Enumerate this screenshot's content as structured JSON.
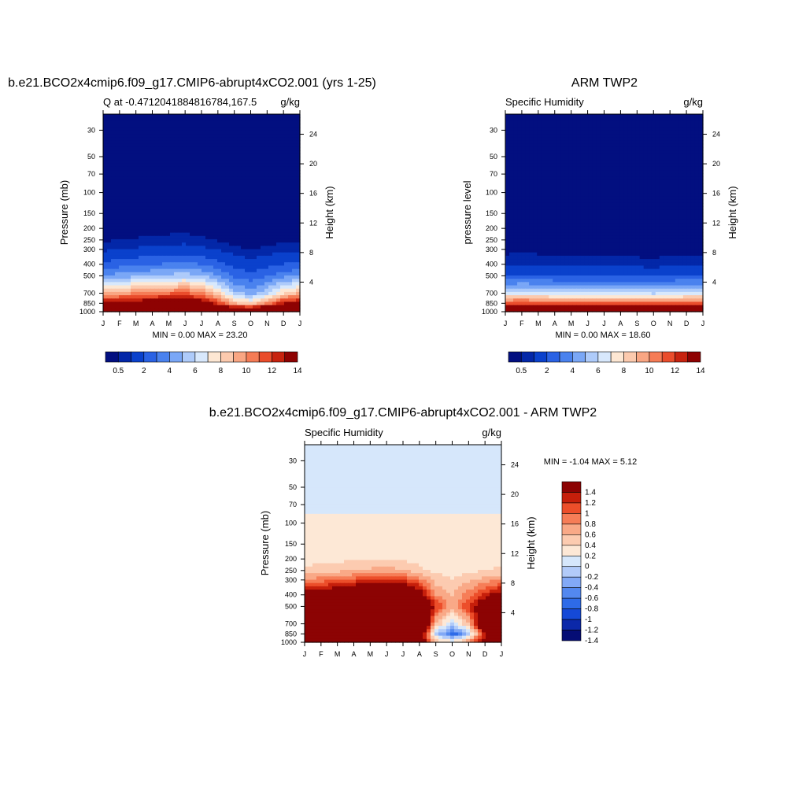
{
  "palettes": {
    "humidity": [
      "#020f80",
      "#0327a8",
      "#0a41cc",
      "#2a62e4",
      "#4a82ee",
      "#7aa7f6",
      "#aecbfa",
      "#d8e8fc",
      "#fde7d3",
      "#fccaae",
      "#f9a683",
      "#f57c56",
      "#ea4d2c",
      "#c7230f",
      "#8e0202"
    ],
    "difference": [
      "#050d75",
      "#0b28a9",
      "#1549d7",
      "#2e6be8",
      "#5388ef",
      "#82a9f6",
      "#b2cbf9",
      "#d6e7fb",
      "#fde8d6",
      "#fccbb0",
      "#f9a987",
      "#f67d57",
      "#ec4e2a",
      "#c61f0b",
      "#8c0303"
    ]
  },
  "charts": [
    {
      "title": "b.e21.BCO2x4cmip6.f09_g17.CMIP6-abrupt4xCO2.001 (yrs 1-25)",
      "left_label": "Q at -0.4712041884816784,167.5",
      "right_label": "g/kg",
      "ylabel": "Pressure (mb)",
      "y2label": "Height (km)",
      "stats": "MIN =   0.00 MAX =  23.20",
      "months": [
        "J",
        "F",
        "M",
        "A",
        "M",
        "J",
        "J",
        "A",
        "S",
        "O",
        "N",
        "D",
        "J"
      ],
      "pressure_ticks": [
        "30",
        "50",
        "70",
        "100",
        "150",
        "200",
        "250",
        "300",
        "400",
        "500",
        "700",
        "850",
        "1000"
      ],
      "height_ticks": [
        "24",
        "20",
        "16",
        "12",
        "8",
        "4"
      ],
      "colorbar_labels": [
        "0.5",
        "2",
        "4",
        "6",
        "8",
        "10",
        "12",
        "14"
      ]
    },
    {
      "title": "ARM TWP2",
      "left_label": "Specific Humidity",
      "right_label": "g/kg",
      "ylabel": "pressure level",
      "y2label": "Height (km)",
      "stats": "MIN =   0.00 MAX =  18.60",
      "months": [
        "J",
        "F",
        "M",
        "A",
        "M",
        "J",
        "J",
        "A",
        "S",
        "O",
        "N",
        "D",
        "J"
      ],
      "pressure_ticks": [
        "30",
        "50",
        "70",
        "100",
        "150",
        "200",
        "250",
        "300",
        "400",
        "500",
        "700",
        "850",
        "1000"
      ],
      "height_ticks": [
        "24",
        "20",
        "16",
        "12",
        "8",
        "4"
      ],
      "colorbar_labels": [
        "0.5",
        "2",
        "4",
        "6",
        "8",
        "10",
        "12",
        "14"
      ]
    },
    {
      "title": "b.e21.BCO2x4cmip6.f09_g17.CMIP6-abrupt4xCO2.001 - ARM TWP2",
      "left_label": "Specific Humidity",
      "right_label": "g/kg",
      "ylabel": "Pressure (mb)",
      "y2label": "Height (km)",
      "stats": "MIN =  -1.04 MAX =   5.12",
      "months": [
        "J",
        "F",
        "M",
        "A",
        "M",
        "J",
        "J",
        "A",
        "S",
        "O",
        "N",
        "D",
        "J"
      ],
      "pressure_ticks": [
        "30",
        "50",
        "70",
        "100",
        "150",
        "200",
        "250",
        "300",
        "400",
        "500",
        "700",
        "850",
        "1000"
      ],
      "height_ticks": [
        "24",
        "20",
        "16",
        "12",
        "8",
        "4"
      ],
      "colorbar_labels": [
        "1.4",
        "1.2",
        "1",
        "0.8",
        "0.6",
        "0.4",
        "0.2",
        "0",
        "-0.2",
        "-0.4",
        "-0.6",
        "-0.8",
        "-1",
        "-1.2",
        "-1.4"
      ]
    }
  ],
  "chart_data": [
    {
      "type": "heatmap",
      "title": "b.e21.BCO2x4cmip6.f09_g17.CMIP6-abrupt4xCO2.001 (yrs 1-25)",
      "variable": "Q at -0.4712041884816784,167.5",
      "units": "g/kg",
      "xlabel": "",
      "ylabel": "Pressure (mb)",
      "y2label": "Height (km)",
      "x_ticks": [
        "J",
        "F",
        "M",
        "A",
        "M",
        "J",
        "J",
        "A",
        "S",
        "O",
        "N",
        "D",
        "J"
      ],
      "y_ticks": [
        30,
        50,
        70,
        100,
        150,
        200,
        250,
        300,
        400,
        500,
        700,
        850,
        1000
      ],
      "y_scale": "log",
      "ylim": [
        1000,
        22
      ],
      "y2_ticks": [
        24,
        20,
        16,
        12,
        8,
        4
      ],
      "levels": [
        0.5,
        1,
        2,
        3,
        4,
        5,
        6,
        7,
        8,
        9,
        10,
        11,
        12,
        13,
        14
      ],
      "min": 0.0,
      "max": 23.2,
      "pressure_levels": [
        30,
        50,
        70,
        100,
        150,
        200,
        250,
        300,
        400,
        500,
        700,
        850,
        1000
      ],
      "values": [
        [
          0.01,
          0.01,
          0.01,
          0.01,
          0.01,
          0.01,
          0.01,
          0.01,
          0.01,
          0.01,
          0.01,
          0.01,
          0.01
        ],
        [
          0.01,
          0.01,
          0.01,
          0.01,
          0.01,
          0.01,
          0.01,
          0.01,
          0.01,
          0.01,
          0.01,
          0.01,
          0.01
        ],
        [
          0.01,
          0.01,
          0.01,
          0.01,
          0.01,
          0.01,
          0.01,
          0.01,
          0.01,
          0.01,
          0.01,
          0.01,
          0.01
        ],
        [
          0.02,
          0.02,
          0.02,
          0.02,
          0.02,
          0.02,
          0.02,
          0.02,
          0.02,
          0.02,
          0.02,
          0.02,
          0.02
        ],
        [
          0.05,
          0.05,
          0.06,
          0.06,
          0.07,
          0.07,
          0.06,
          0.05,
          0.04,
          0.04,
          0.04,
          0.05,
          0.05
        ],
        [
          0.2,
          0.25,
          0.28,
          0.3,
          0.33,
          0.35,
          0.3,
          0.22,
          0.15,
          0.12,
          0.15,
          0.2,
          0.2
        ],
        [
          0.4,
          0.5,
          0.55,
          0.6,
          0.65,
          0.7,
          0.6,
          0.45,
          0.3,
          0.25,
          0.3,
          0.4,
          0.4
        ],
        [
          0.8,
          1.0,
          1.1,
          1.2,
          1.3,
          1.4,
          1.2,
          0.9,
          0.6,
          0.5,
          0.6,
          0.8,
          0.8
        ],
        [
          2.2,
          2.5,
          2.7,
          2.9,
          3.1,
          3.3,
          2.9,
          2.3,
          1.6,
          1.3,
          1.6,
          2.0,
          2.2
        ],
        [
          4.0,
          4.4,
          4.7,
          5.0,
          5.3,
          5.6,
          5.0,
          4.0,
          2.8,
          2.3,
          2.9,
          3.6,
          4.0
        ],
        [
          9.0,
          9.5,
          10.0,
          10.4,
          10.8,
          11.2,
          10.2,
          8.2,
          5.4,
          4.4,
          5.8,
          8.0,
          9.0
        ],
        [
          13.5,
          13.8,
          14.2,
          14.5,
          14.8,
          15.0,
          14.2,
          12.0,
          9.0,
          8.0,
          10.0,
          12.8,
          13.5
        ],
        [
          19.5,
          19.8,
          20.2,
          20.5,
          20.8,
          21.0,
          20.5,
          19.0,
          17.5,
          17.0,
          18.5,
          19.3,
          19.5
        ]
      ]
    },
    {
      "type": "heatmap",
      "title": "ARM TWP2",
      "variable": "Specific Humidity",
      "units": "g/kg",
      "xlabel": "",
      "ylabel": "pressure level",
      "y2label": "Height (km)",
      "x_ticks": [
        "J",
        "F",
        "M",
        "A",
        "M",
        "J",
        "J",
        "A",
        "S",
        "O",
        "N",
        "D",
        "J"
      ],
      "y_ticks": [
        30,
        50,
        70,
        100,
        150,
        200,
        250,
        300,
        400,
        500,
        700,
        850,
        1000
      ],
      "y_scale": "log",
      "ylim": [
        1000,
        22
      ],
      "y2_ticks": [
        24,
        20,
        16,
        12,
        8,
        4
      ],
      "levels": [
        0.5,
        1,
        2,
        3,
        4,
        5,
        6,
        7,
        8,
        9,
        10,
        11,
        12,
        13,
        14
      ],
      "min": 0.0,
      "max": 18.6,
      "pressure_levels": [
        30,
        50,
        70,
        100,
        150,
        200,
        250,
        300,
        400,
        500,
        700,
        850,
        1000
      ],
      "values": [
        [
          0.0,
          0.0,
          0.0,
          0.0,
          0.0,
          0.0,
          0.0,
          0.0,
          0.0,
          0.0,
          0.0,
          0.0,
          0.0
        ],
        [
          0.0,
          0.0,
          0.0,
          0.0,
          0.0,
          0.0,
          0.0,
          0.0,
          0.0,
          0.0,
          0.0,
          0.0,
          0.0
        ],
        [
          0.0,
          0.0,
          0.0,
          0.0,
          0.0,
          0.0,
          0.0,
          0.0,
          0.0,
          0.0,
          0.0,
          0.0,
          0.0
        ],
        [
          0.01,
          0.01,
          0.01,
          0.01,
          0.01,
          0.01,
          0.01,
          0.01,
          0.01,
          0.01,
          0.01,
          0.01,
          0.01
        ],
        [
          0.02,
          0.02,
          0.02,
          0.02,
          0.02,
          0.02,
          0.02,
          0.02,
          0.02,
          0.02,
          0.02,
          0.02,
          0.02
        ],
        [
          0.05,
          0.05,
          0.05,
          0.05,
          0.05,
          0.05,
          0.05,
          0.05,
          0.05,
          0.05,
          0.05,
          0.05,
          0.05
        ],
        [
          0.1,
          0.1,
          0.1,
          0.1,
          0.1,
          0.1,
          0.1,
          0.1,
          0.1,
          0.1,
          0.1,
          0.1,
          0.1
        ],
        [
          0.3,
          0.35,
          0.3,
          0.28,
          0.25,
          0.25,
          0.25,
          0.25,
          0.22,
          0.2,
          0.25,
          0.28,
          0.3
        ],
        [
          0.9,
          1.0,
          0.9,
          0.85,
          0.8,
          0.8,
          0.8,
          0.8,
          0.75,
          0.7,
          0.8,
          0.85,
          0.9
        ],
        [
          2.0,
          2.1,
          2.0,
          1.9,
          1.9,
          1.9,
          1.9,
          1.9,
          1.8,
          1.7,
          1.9,
          1.95,
          2.0
        ],
        [
          6.2,
          6.4,
          6.2,
          6.0,
          6.0,
          6.0,
          6.0,
          6.0,
          5.9,
          5.8,
          6.0,
          6.1,
          6.2
        ],
        [
          11.5,
          11.8,
          11.5,
          11.3,
          11.2,
          11.2,
          11.3,
          11.2,
          11.0,
          10.9,
          11.2,
          11.4,
          11.5
        ],
        [
          17.4,
          17.6,
          17.4,
          17.2,
          17.2,
          17.3,
          17.3,
          17.2,
          17.1,
          17.0,
          17.2,
          17.3,
          17.4
        ]
      ]
    },
    {
      "type": "heatmap",
      "title": "b.e21.BCO2x4cmip6.f09_g17.CMIP6-abrupt4xCO2.001 - ARM TWP2",
      "variable": "Specific Humidity",
      "units": "g/kg",
      "xlabel": "",
      "ylabel": "Pressure (mb)",
      "y2label": "Height (km)",
      "x_ticks": [
        "J",
        "F",
        "M",
        "A",
        "M",
        "J",
        "J",
        "A",
        "S",
        "O",
        "N",
        "D",
        "J"
      ],
      "y_ticks": [
        30,
        50,
        70,
        100,
        150,
        200,
        250,
        300,
        400,
        500,
        700,
        850,
        1000
      ],
      "y_scale": "log",
      "ylim": [
        1000,
        22
      ],
      "y2_ticks": [
        24,
        20,
        16,
        12,
        8,
        4
      ],
      "levels": [
        -1.4,
        -1.2,
        -1.0,
        -0.8,
        -0.6,
        -0.4,
        -0.2,
        0,
        0.2,
        0.4,
        0.6,
        0.8,
        1.0,
        1.2,
        1.4
      ],
      "min": -1.04,
      "max": 5.12,
      "pressure_levels": [
        30,
        50,
        70,
        100,
        150,
        200,
        250,
        300,
        400,
        500,
        700,
        850,
        1000
      ],
      "values": [
        [
          -0.05,
          -0.05,
          -0.05,
          -0.05,
          -0.05,
          -0.05,
          -0.05,
          -0.05,
          -0.05,
          -0.05,
          -0.05,
          -0.05,
          -0.05
        ],
        [
          -0.05,
          -0.05,
          -0.05,
          -0.05,
          -0.05,
          -0.05,
          -0.05,
          -0.05,
          -0.05,
          -0.05,
          -0.05,
          -0.05,
          -0.05
        ],
        [
          -0.05,
          -0.05,
          -0.05,
          -0.05,
          -0.05,
          -0.05,
          -0.05,
          -0.05,
          -0.05,
          -0.05,
          -0.05,
          -0.05,
          -0.05
        ],
        [
          0.05,
          0.05,
          0.05,
          0.05,
          0.05,
          0.05,
          0.05,
          0.05,
          0.05,
          0.05,
          0.05,
          0.05,
          0.05
        ],
        [
          0.1,
          0.1,
          0.1,
          0.1,
          0.1,
          0.1,
          0.1,
          0.1,
          0.1,
          0.1,
          0.1,
          0.1,
          0.1
        ],
        [
          0.12,
          0.14,
          0.15,
          0.16,
          0.18,
          0.2,
          0.17,
          0.12,
          0.1,
          0.1,
          0.1,
          0.11,
          0.12
        ],
        [
          0.25,
          0.3,
          0.35,
          0.38,
          0.45,
          0.5,
          0.4,
          0.25,
          0.15,
          0.12,
          0.15,
          0.2,
          0.25
        ],
        [
          0.6,
          0.7,
          0.8,
          0.9,
          1.0,
          1.1,
          1.0,
          0.7,
          0.3,
          0.2,
          0.35,
          0.5,
          0.6
        ],
        [
          1.4,
          1.5,
          1.6,
          1.8,
          2.0,
          2.2,
          2.0,
          1.5,
          0.6,
          0.4,
          0.7,
          1.1,
          1.4
        ],
        [
          2.0,
          2.2,
          2.5,
          2.8,
          3.1,
          3.4,
          3.1,
          2.2,
          1.0,
          0.5,
          1.0,
          1.6,
          2.0
        ],
        [
          2.8,
          3.0,
          3.5,
          4.0,
          4.5,
          5.0,
          4.2,
          2.4,
          0.4,
          -0.2,
          0.4,
          2.0,
          2.8
        ],
        [
          2.0,
          2.0,
          2.4,
          2.8,
          3.2,
          3.6,
          3.0,
          1.6,
          -0.2,
          -1.0,
          -0.3,
          1.2,
          2.0
        ],
        [
          2.0,
          2.2,
          2.6,
          3.0,
          3.4,
          3.8,
          3.2,
          1.8,
          0.4,
          0.2,
          0.6,
          1.4,
          2.0
        ]
      ]
    }
  ]
}
